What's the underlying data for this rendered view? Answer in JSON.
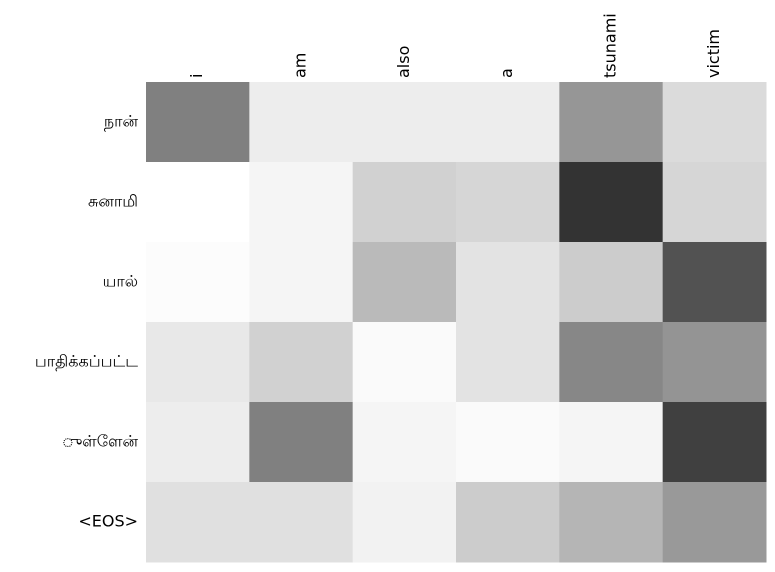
{
  "chart_data": {
    "type": "heatmap",
    "x_categories": [
      "i",
      "am",
      "also",
      "a",
      "tsunami",
      "victim"
    ],
    "y_categories": [
      "நான்",
      "சுனாமி",
      "யால்",
      "பாதிக்கப்பட்ட",
      "ுள்ளேன்",
      "<EOS>"
    ],
    "values": [
      [
        0.5,
        0.07,
        0.07,
        0.07,
        0.41,
        0.14
      ],
      [
        0.0,
        0.04,
        0.18,
        0.16,
        0.8,
        0.16
      ],
      [
        0.01,
        0.04,
        0.27,
        0.11,
        0.2,
        0.68
      ],
      [
        0.09,
        0.18,
        0.02,
        0.11,
        0.47,
        0.42
      ],
      [
        0.07,
        0.5,
        0.04,
        0.02,
        0.04,
        0.75
      ],
      [
        0.12,
        0.12,
        0.05,
        0.2,
        0.29,
        0.4
      ]
    ]
  }
}
